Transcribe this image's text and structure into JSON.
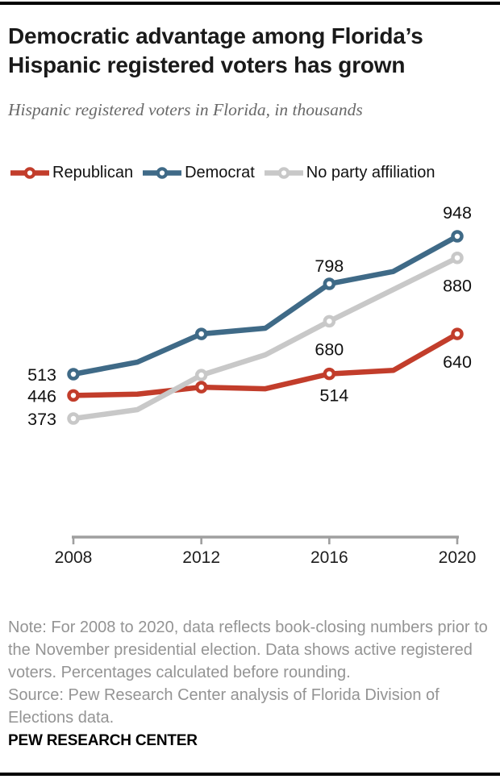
{
  "header": {
    "title": "Democratic advantage among Florida’s Hispanic registered voters has grown",
    "subtitle": "Hispanic registered voters in Florida, in thousands"
  },
  "chart_data": {
    "type": "line",
    "title": "Democratic advantage among Florida’s Hispanic registered voters has grown",
    "subtitle": "Hispanic registered voters in Florida, in thousands",
    "x": [
      2008,
      2010,
      2012,
      2014,
      2016,
      2018,
      2020
    ],
    "x_tick_labels": [
      "2008",
      "2012",
      "2016",
      "2020"
    ],
    "marker_years": [
      2008,
      2012,
      2016,
      2020
    ],
    "grid": false,
    "legend_position": "top",
    "axis_color": "#9f9f9f",
    "label_color": "#111111",
    "series": [
      {
        "name": "Republican",
        "color": "#c23d2b",
        "values": [
          446,
          450,
          472,
          467,
          514,
          525,
          640
        ],
        "labels": {
          "2008": "446",
          "2016": "514",
          "2020": "640"
        }
      },
      {
        "name": "Democrat",
        "color": "#3f6a87",
        "values": [
          513,
          551,
          640,
          658,
          798,
          837,
          948
        ],
        "labels": {
          "2008": "513",
          "2016": "798",
          "2020": "948"
        }
      },
      {
        "name": "No party affiliation",
        "color": "#c8c8c8",
        "values": [
          373,
          401,
          510,
          574,
          680,
          780,
          880
        ],
        "labels": {
          "2008": "373",
          "2016": "680",
          "2020": "880"
        }
      }
    ]
  },
  "footer": {
    "note": "Note: For 2008 to 2020, data reflects book-closing numbers prior to the November presidential election. Data shows active registered voters. Percentages calculated before rounding.",
    "source": "Source: Pew Research Center analysis of Florida Division of Elections data.",
    "brand": "PEW RESEARCH CENTER"
  }
}
